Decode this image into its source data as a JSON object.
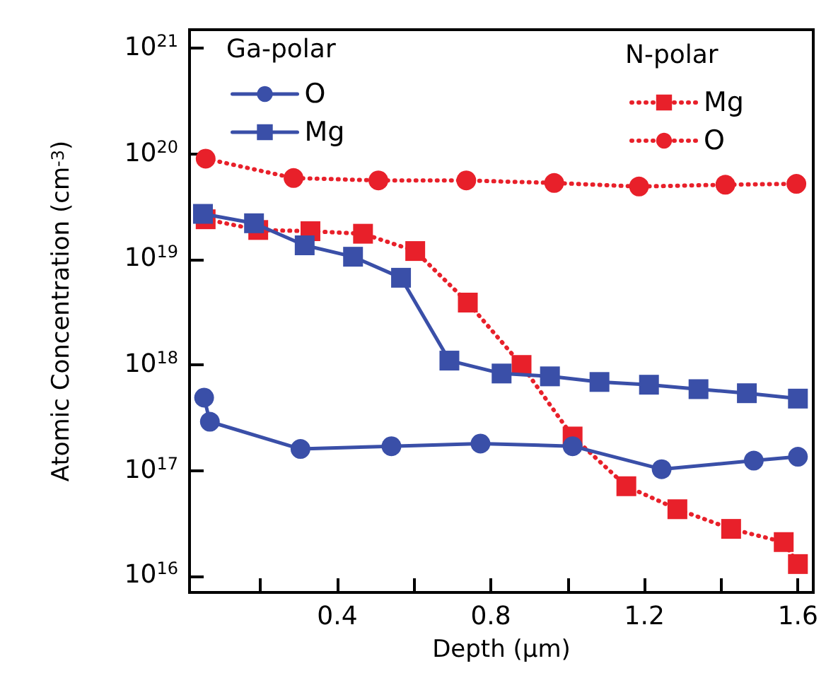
{
  "chart_data": {
    "type": "line",
    "xlabel": "Depth (µm)",
    "ylabel": "Atomic Concentration (cm$^{-3}$)",
    "annotations": [
      "Ga-polar",
      "N-polar"
    ],
    "xlim": [
      0.015,
      1.64
    ],
    "xticks": [
      {
        "value": 0.2,
        "label": null
      },
      0.4,
      {
        "value": 0.6,
        "label": null
      },
      0.8,
      {
        "value": 1.0,
        "label": null
      },
      1.2,
      {
        "value": 1.4,
        "label": null
      },
      1.6
    ],
    "ylim": [
      7000000000000000.0,
      1.5e+21
    ],
    "yticks": [
      {
        "value": 1e+16,
        "label": "10$^{16}$"
      },
      {
        "value": 1e+17,
        "label": "10$^{17}$"
      },
      {
        "value": 1e+18,
        "label": "10$^{18}$"
      },
      {
        "value": 1e+19,
        "label": "10$^{19}$"
      },
      {
        "value": 1e+20,
        "label": "10$^{20}$"
      },
      {
        "value": 1e+21,
        "label": "10$^{21}$"
      }
    ],
    "log": "y",
    "grid": false,
    "legend": "top",
    "series": [
      {
        "name": "O",
        "color": "#3a4fa8",
        "marker": "circle",
        "line_style": "solid",
        "x": [
          0.053,
          0.068,
          0.304,
          0.541,
          0.773,
          1.013,
          1.245,
          1.485,
          1.6
        ],
        "values": [
          4.9e+17,
          2.9e+17,
          1.6e+17,
          1.7e+17,
          1.8e+17,
          1.7e+17,
          1.03e+17,
          1.24e+17,
          1.35e+17
        ]
      },
      {
        "name": "Mg",
        "color": "#3a4fa8",
        "marker": "square",
        "line_style": "solid",
        "x": [
          0.05,
          0.183,
          0.315,
          0.441,
          0.566,
          0.692,
          0.828,
          0.954,
          1.083,
          1.212,
          1.341,
          1.467,
          1.6
        ],
        "values": [
          2.7e+19,
          2.2e+19,
          1.36e+19,
          1.06e+19,
          6.7e+18,
          1.1e+18,
          8.3e+17,
          7.8e+17,
          6.9e+17,
          6.5e+17,
          5.9e+17,
          5.4e+17,
          4.8e+17
        ]
      },
      {
        "name": "Mg",
        "color": "#e8202a",
        "marker": "square",
        "line_style": "dotted",
        "x": [
          0.057,
          0.194,
          0.33,
          0.467,
          0.603,
          0.74,
          0.88,
          1.013,
          1.153,
          1.286,
          1.426,
          1.563,
          1.6
        ],
        "values": [
          2.4e+19,
          1.9e+19,
          1.85e+19,
          1.75e+19,
          1.2e+19,
          3.9e+18,
          1e+18,
          2.1e+17,
          7.1e+16,
          4.3e+16,
          2.8e+16,
          2.1e+16,
          1.3e+16
        ]
      },
      {
        "name": "O",
        "color": "#e8202a",
        "marker": "circle",
        "line_style": "dotted",
        "x": [
          0.057,
          0.286,
          0.507,
          0.736,
          0.965,
          1.186,
          1.411,
          1.596
        ],
        "values": [
          9e+19,
          5.9e+19,
          5.6e+19,
          5.6e+19,
          5.3e+19,
          4.9e+19,
          5.1e+19,
          5.2e+19
        ]
      }
    ]
  }
}
